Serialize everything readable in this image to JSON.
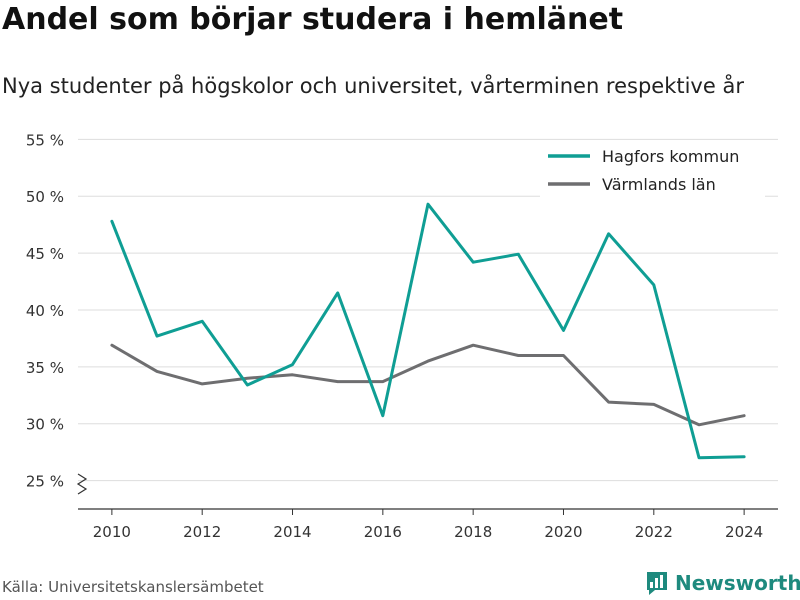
{
  "header": {
    "title": "Andel som börjar studera i hemlänet",
    "subtitle": "Nya studenter på högskolor och universitet, vårterminen respektive år"
  },
  "footer": {
    "source": "Källa: Universitetskanslersämbetet",
    "brand": "Newsworthy"
  },
  "colors": {
    "hagfors": "#0f9e94",
    "varmland": "#6e6e70",
    "grid": "#dddddd",
    "axis": "#333333",
    "brand": "#1e8a7e"
  },
  "icons": {
    "brand": "newsworthy-logo-icon",
    "axis_break": "axis-break-icon"
  },
  "chart_data": {
    "type": "line",
    "x": [
      2010,
      2011,
      2012,
      2013,
      2014,
      2015,
      2016,
      2017,
      2018,
      2019,
      2020,
      2021,
      2022,
      2023,
      2024
    ],
    "series": [
      {
        "name": "Hagfors kommun",
        "values": [
          47.8,
          37.7,
          39.0,
          33.4,
          35.2,
          41.5,
          30.7,
          49.3,
          44.2,
          44.9,
          38.2,
          46.7,
          42.2,
          27.0,
          27.1
        ]
      },
      {
        "name": "Värmlands län",
        "values": [
          36.9,
          34.6,
          33.5,
          34.0,
          34.3,
          33.7,
          33.7,
          35.5,
          36.9,
          36.0,
          36.0,
          31.9,
          31.7,
          29.9,
          30.7
        ]
      }
    ],
    "y_ticks": [
      "25 %",
      "30 %",
      "35 %",
      "40 %",
      "45 %",
      "50 %",
      "55 %"
    ],
    "x_ticks": [
      "2010",
      "2012",
      "2014",
      "2016",
      "2018",
      "2020",
      "2022",
      "2024"
    ],
    "ylim": [
      22.5,
      56
    ],
    "xlim": [
      2009.25,
      2024.75
    ],
    "grid": true,
    "legend_position": "top-right",
    "axis_break": true
  }
}
